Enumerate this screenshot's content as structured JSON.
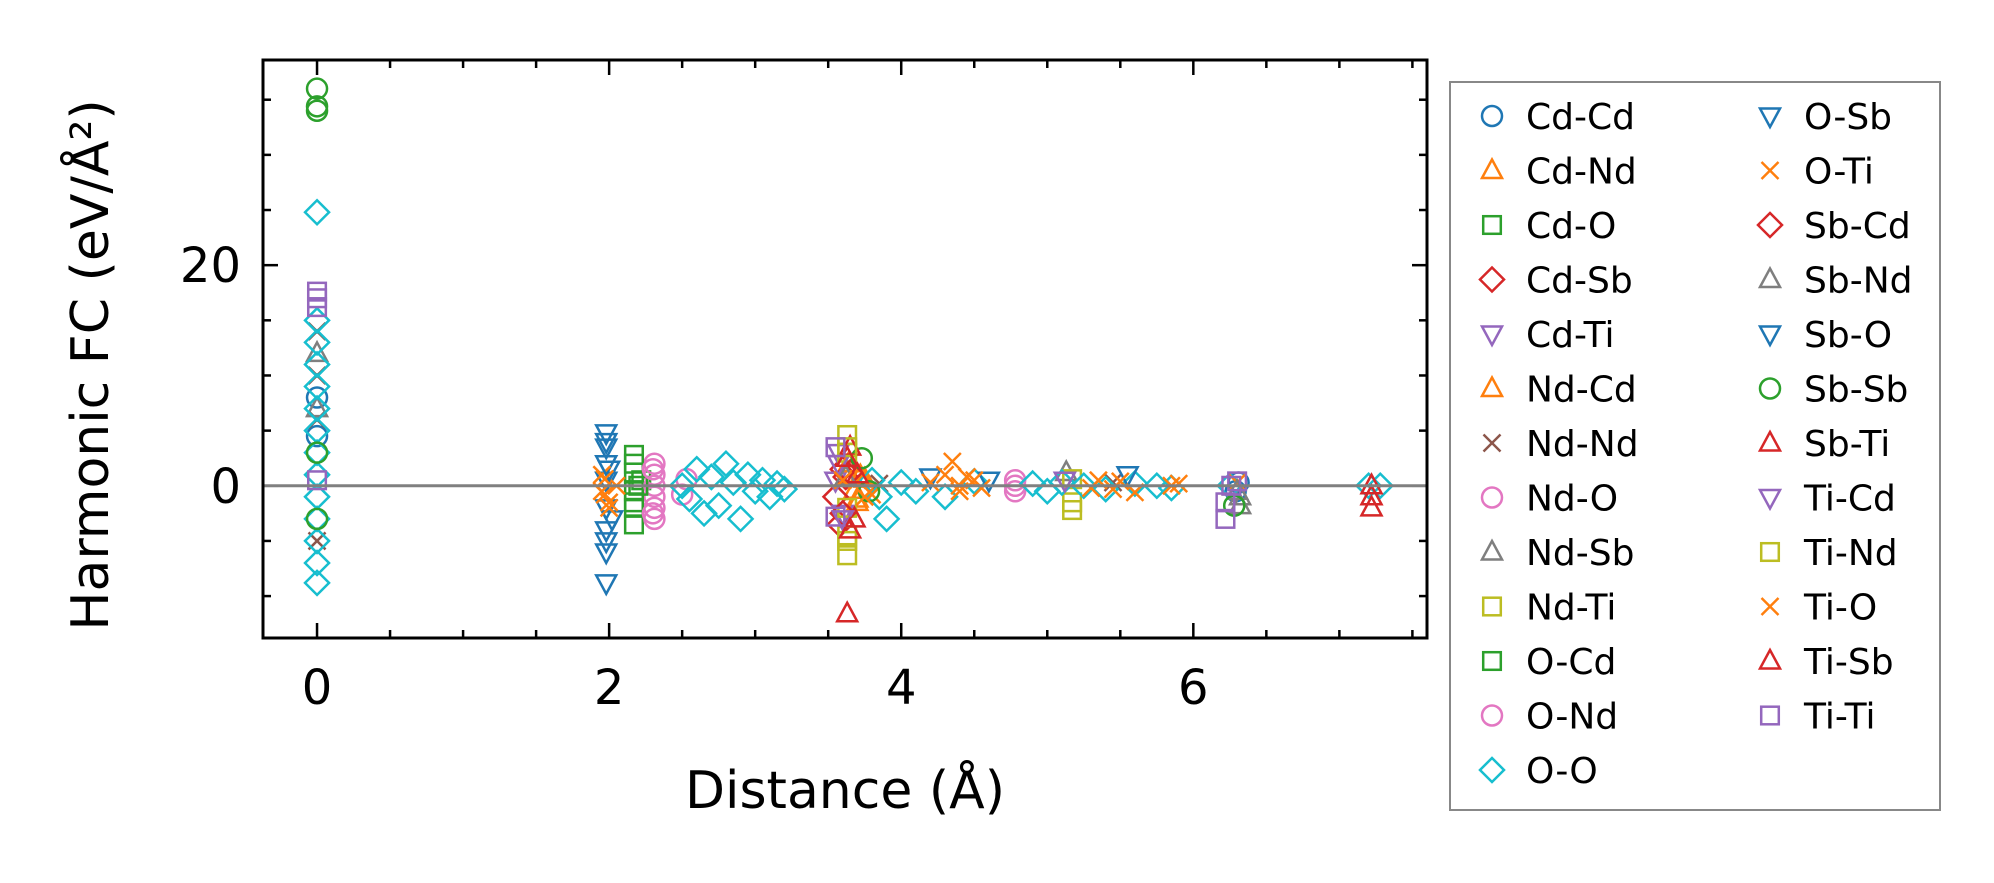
{
  "chart_data": {
    "type": "scatter",
    "title": "",
    "xlabel": "Distance (Å)",
    "ylabel": "Harmonic FC (eV/Å²)",
    "xlim": [
      -0.37,
      7.6
    ],
    "ylim": [
      -13.8,
      38.6
    ],
    "xticks": [
      0,
      2,
      4,
      6
    ],
    "yticks": [
      0,
      20
    ],
    "xtick_labels": [
      "0",
      "2",
      "4",
      "6"
    ],
    "ytick_labels": [
      "0",
      "20"
    ],
    "zero_line": 0,
    "grid": false,
    "legend": {
      "position": "right-outside",
      "columns": 2
    },
    "series": [
      {
        "name": "Cd-Cd",
        "marker": "circle",
        "color": "#1f77b4",
        "points": [
          [
            0,
            8.0
          ],
          [
            0,
            4.5
          ],
          [
            6.29,
            -0.5
          ],
          [
            6.31,
            0.3
          ]
        ]
      },
      {
        "name": "Cd-Nd",
        "marker": "triangle-up",
        "color": "#ff7f0e",
        "points": [
          [
            3.63,
            1.0
          ],
          [
            3.68,
            -0.4
          ],
          [
            3.75,
            0.6
          ],
          [
            3.7,
            -1.2
          ]
        ]
      },
      {
        "name": "Cd-O",
        "marker": "square",
        "color": "#2ca02c",
        "points": [
          [
            2.17,
            2.8
          ],
          [
            2.17,
            1.2
          ],
          [
            2.17,
            -0.5
          ],
          [
            2.17,
            -2.0
          ],
          [
            2.17,
            -3.5
          ],
          [
            2.22,
            0.5
          ]
        ]
      },
      {
        "name": "Cd-Sb",
        "marker": "diamond",
        "color": "#d62728",
        "points": [
          [
            3.55,
            -1.0
          ],
          [
            3.6,
            1.5
          ],
          [
            3.58,
            -3.5
          ],
          [
            3.62,
            0.8
          ]
        ]
      },
      {
        "name": "Cd-Ti",
        "marker": "triangle-down",
        "color": "#9467bd",
        "points": [
          [
            3.57,
            3.0
          ],
          [
            3.6,
            -2.5
          ],
          [
            3.55,
            0.5
          ]
        ]
      },
      {
        "name": "Nd-Cd",
        "marker": "triangle-up",
        "color": "#ff7f0e",
        "points": [
          [
            3.64,
            2.0
          ],
          [
            3.7,
            -1.5
          ],
          [
            3.72,
            0.9
          ]
        ]
      },
      {
        "name": "Nd-Nd",
        "marker": "x",
        "color": "#8c564b",
        "points": [
          [
            0,
            14.0
          ],
          [
            0,
            10.0
          ],
          [
            0,
            6.0
          ],
          [
            0,
            -5.0
          ],
          [
            3.85,
            0.2
          ],
          [
            5.45,
            0.3
          ]
        ]
      },
      {
        "name": "Nd-O",
        "marker": "circle",
        "color": "#e377c2",
        "points": [
          [
            2.31,
            2.0
          ],
          [
            2.31,
            1.0
          ],
          [
            2.31,
            0.0
          ],
          [
            2.31,
            -1.0
          ],
          [
            2.31,
            -2.0
          ],
          [
            2.31,
            -3.0
          ],
          [
            2.5,
            -0.8
          ],
          [
            2.53,
            0.6
          ],
          [
            4.78,
            0.5
          ],
          [
            4.78,
            -0.5
          ],
          [
            4.78,
            0.0
          ]
        ]
      },
      {
        "name": "Nd-Sb",
        "marker": "triangle-up",
        "color": "#7f7f7f",
        "points": [
          [
            0,
            12.0
          ],
          [
            0,
            7.0
          ],
          [
            5.13,
            1.2
          ],
          [
            6.32,
            -1.0
          ],
          [
            6.32,
            -1.8
          ]
        ]
      },
      {
        "name": "Nd-Ti",
        "marker": "square",
        "color": "#bcbd22",
        "points": [
          [
            3.63,
            4.6
          ],
          [
            3.63,
            3.0
          ],
          [
            3.63,
            -2.0
          ],
          [
            3.63,
            -4.5
          ],
          [
            3.63,
            -6.3
          ],
          [
            5.17,
            0.6
          ],
          [
            5.17,
            -1.5
          ]
        ]
      },
      {
        "name": "O-Cd",
        "marker": "square",
        "color": "#2ca02c",
        "points": [
          [
            2.17,
            2.0
          ],
          [
            2.17,
            -1.5
          ],
          [
            2.2,
            0.0
          ]
        ]
      },
      {
        "name": "O-Nd",
        "marker": "circle",
        "color": "#e377c2",
        "points": [
          [
            2.3,
            1.5
          ],
          [
            2.3,
            -2.5
          ]
        ]
      },
      {
        "name": "O-O",
        "marker": "diamond",
        "color": "#17becf",
        "points": [
          [
            0,
            24.8
          ],
          [
            0,
            15.0
          ],
          [
            0,
            13.0
          ],
          [
            0,
            11.0
          ],
          [
            0,
            9.0
          ],
          [
            0,
            7.0
          ],
          [
            0,
            5.0
          ],
          [
            0,
            3.0
          ],
          [
            0,
            1.0
          ],
          [
            0,
            -1.0
          ],
          [
            0,
            -3.0
          ],
          [
            0,
            -5.0
          ],
          [
            0,
            -7.0
          ],
          [
            0,
            -8.8
          ],
          [
            2.5,
            0.0
          ],
          [
            2.55,
            -1.2
          ],
          [
            2.6,
            1.5
          ],
          [
            2.65,
            -2.5
          ],
          [
            2.7,
            0.8
          ],
          [
            2.75,
            -1.8
          ],
          [
            2.8,
            2.0
          ],
          [
            2.85,
            0.3
          ],
          [
            2.9,
            -3.0
          ],
          [
            2.95,
            1.0
          ],
          [
            3.0,
            -0.5
          ],
          [
            3.05,
            0.5
          ],
          [
            3.1,
            -1.0
          ],
          [
            3.15,
            0.2
          ],
          [
            3.2,
            -0.3
          ],
          [
            3.8,
            0.5
          ],
          [
            3.85,
            -1.0
          ],
          [
            3.9,
            -3.0
          ],
          [
            4.0,
            0.3
          ],
          [
            4.1,
            -0.5
          ],
          [
            4.3,
            -1.0
          ],
          [
            4.5,
            0.4
          ],
          [
            4.9,
            0.2
          ],
          [
            5.0,
            -0.5
          ],
          [
            5.1,
            0.3
          ],
          [
            5.25,
            0.0
          ],
          [
            5.4,
            -0.3
          ],
          [
            5.6,
            0.2
          ],
          [
            5.75,
            0.0
          ],
          [
            5.85,
            -0.2
          ],
          [
            6.25,
            0.0
          ],
          [
            7.2,
            0.0
          ],
          [
            7.28,
            0.0
          ]
        ]
      },
      {
        "name": "O-Sb",
        "marker": "triangle-down",
        "color": "#1f77b4",
        "points": [
          [
            1.98,
            4.8
          ],
          [
            1.98,
            3.5
          ],
          [
            1.98,
            2.0
          ],
          [
            1.98,
            0.5
          ],
          [
            1.98,
            -2.0
          ],
          [
            1.98,
            -4.0
          ],
          [
            1.98,
            -6.0
          ],
          [
            1.98,
            -8.8
          ],
          [
            2.02,
            -3.0
          ],
          [
            4.2,
            0.8
          ],
          [
            4.6,
            0.5
          ],
          [
            5.55,
            1.0
          ]
        ]
      },
      {
        "name": "O-Ti",
        "marker": "x",
        "color": "#ff7f0e",
        "points": [
          [
            1.95,
            1.0
          ],
          [
            1.95,
            -0.5
          ],
          [
            2.0,
            -2.0
          ],
          [
            2.05,
            0.0
          ],
          [
            3.7,
            0.5
          ],
          [
            3.8,
            -0.8
          ],
          [
            4.3,
            1.0
          ],
          [
            4.35,
            2.2
          ],
          [
            4.4,
            -0.5
          ],
          [
            4.45,
            0.8
          ],
          [
            4.55,
            -0.2
          ],
          [
            5.35,
            0.5
          ],
          [
            5.45,
            -0.3
          ],
          [
            5.9,
            0.2
          ],
          [
            6.3,
            0.3
          ]
        ]
      },
      {
        "name": "Sb-Cd",
        "marker": "diamond",
        "color": "#d62728",
        "points": [
          [
            3.6,
            -2.5
          ],
          [
            3.65,
            1.2
          ]
        ]
      },
      {
        "name": "Sb-Nd",
        "marker": "triangle-up",
        "color": "#7f7f7f",
        "points": [
          [
            6.3,
            -0.5
          ],
          [
            3.62,
            0.8
          ]
        ]
      },
      {
        "name": "Sb-O",
        "marker": "triangle-down",
        "color": "#1f77b4",
        "points": [
          [
            1.98,
            4.0
          ],
          [
            1.98,
            -5.0
          ],
          [
            2.0,
            1.5
          ]
        ]
      },
      {
        "name": "Sb-Sb",
        "marker": "circle",
        "color": "#2ca02c",
        "points": [
          [
            0,
            36.0
          ],
          [
            0,
            34.4
          ],
          [
            0,
            34.0
          ],
          [
            0,
            3.0
          ],
          [
            0,
            -3.0
          ],
          [
            3.73,
            2.5
          ],
          [
            3.78,
            -0.5
          ],
          [
            6.28,
            -1.8
          ]
        ]
      },
      {
        "name": "Sb-Ti",
        "marker": "triangle-up",
        "color": "#d62728",
        "points": [
          [
            3.63,
            -11.6
          ],
          [
            3.65,
            3.5
          ],
          [
            3.68,
            -3.0
          ],
          [
            3.7,
            1.0
          ],
          [
            7.22,
            -2.0
          ],
          [
            7.22,
            0.0
          ]
        ]
      },
      {
        "name": "Ti-Cd",
        "marker": "triangle-down",
        "color": "#9467bd",
        "points": [
          [
            3.57,
            2.0
          ],
          [
            3.6,
            -3.0
          ],
          [
            5.12,
            0.5
          ]
        ]
      },
      {
        "name": "Ti-Nd",
        "marker": "square",
        "color": "#bcbd22",
        "points": [
          [
            3.63,
            3.5
          ],
          [
            3.63,
            -5.0
          ],
          [
            5.17,
            -2.2
          ]
        ]
      },
      {
        "name": "Ti-O",
        "marker": "x",
        "color": "#ff7f0e",
        "points": [
          [
            1.97,
            -0.8
          ],
          [
            1.97,
            0.6
          ],
          [
            2.0,
            -1.5
          ],
          [
            3.6,
            0.5
          ],
          [
            3.75,
            -1.0
          ],
          [
            4.2,
            0.3
          ],
          [
            4.4,
            0.0
          ],
          [
            4.5,
            0.5
          ],
          [
            5.3,
            -0.2
          ],
          [
            5.5,
            0.4
          ],
          [
            5.6,
            -0.6
          ],
          [
            5.85,
            0.0
          ]
        ]
      },
      {
        "name": "Ti-Sb",
        "marker": "triangle-up",
        "color": "#d62728",
        "points": [
          [
            3.63,
            2.5
          ],
          [
            3.65,
            -4.0
          ],
          [
            7.22,
            -1.0
          ]
        ]
      },
      {
        "name": "Ti-Ti",
        "marker": "square",
        "color": "#9467bd",
        "points": [
          [
            0,
            17.6
          ],
          [
            0,
            17.0
          ],
          [
            0,
            16.2
          ],
          [
            0,
            0.5
          ],
          [
            3.55,
            3.5
          ],
          [
            3.55,
            -2.8
          ],
          [
            6.22,
            -3.0
          ],
          [
            6.22,
            -1.5
          ],
          [
            6.26,
            0.0
          ],
          [
            6.3,
            0.4
          ]
        ]
      }
    ]
  }
}
